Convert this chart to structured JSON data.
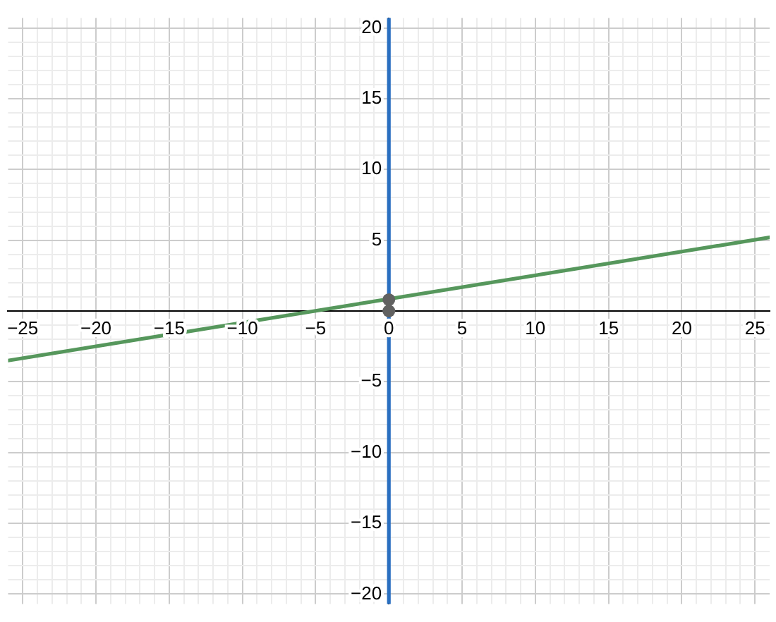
{
  "chart_data": {
    "type": "line",
    "xlim": [
      -26,
      26
    ],
    "ylim": [
      -20.7,
      20.7
    ],
    "xticks": [
      {
        "value": -25,
        "label": "−25"
      },
      {
        "value": -24,
        "label": null
      },
      {
        "value": -23,
        "label": null
      },
      {
        "value": -22,
        "label": null
      },
      {
        "value": -21,
        "label": null
      },
      {
        "value": -20,
        "label": "−20"
      },
      {
        "value": -19,
        "label": null
      },
      {
        "value": -18,
        "label": null
      },
      {
        "value": -17,
        "label": null
      },
      {
        "value": -16,
        "label": null
      },
      {
        "value": -15,
        "label": "−15"
      },
      {
        "value": -14,
        "label": null
      },
      {
        "value": -13,
        "label": null
      },
      {
        "value": -12,
        "label": null
      },
      {
        "value": -11,
        "label": null
      },
      {
        "value": -10,
        "label": "−10"
      },
      {
        "value": -9,
        "label": null
      },
      {
        "value": -8,
        "label": null
      },
      {
        "value": -7,
        "label": null
      },
      {
        "value": -6,
        "label": null
      },
      {
        "value": -5,
        "label": "−5"
      },
      {
        "value": -4,
        "label": null
      },
      {
        "value": -3,
        "label": null
      },
      {
        "value": -2,
        "label": null
      },
      {
        "value": -1,
        "label": null
      },
      0,
      {
        "value": 1,
        "label": null
      },
      {
        "value": 2,
        "label": null
      },
      {
        "value": 3,
        "label": null
      },
      {
        "value": 4,
        "label": null
      },
      5,
      {
        "value": 6,
        "label": null
      },
      {
        "value": 7,
        "label": null
      },
      {
        "value": 8,
        "label": null
      },
      {
        "value": 9,
        "label": null
      },
      10,
      {
        "value": 11,
        "label": null
      },
      {
        "value": 12,
        "label": null
      },
      {
        "value": 13,
        "label": null
      },
      {
        "value": 14,
        "label": null
      },
      15,
      {
        "value": 16,
        "label": null
      },
      {
        "value": 17,
        "label": null
      },
      {
        "value": 18,
        "label": null
      },
      {
        "value": 19,
        "label": null
      },
      20,
      {
        "value": 21,
        "label": null
      },
      {
        "value": 22,
        "label": null
      },
      {
        "value": 23,
        "label": null
      },
      {
        "value": 24,
        "label": null
      },
      25
    ],
    "yticks": [
      {
        "value": -20,
        "label": "−20"
      },
      {
        "value": -19,
        "label": null
      },
      {
        "value": -18,
        "label": null
      },
      {
        "value": -17,
        "label": null
      },
      {
        "value": -16,
        "label": null
      },
      {
        "value": -15,
        "label": "−15"
      },
      {
        "value": -14,
        "label": null
      },
      {
        "value": -13,
        "label": null
      },
      {
        "value": -12,
        "label": null
      },
      {
        "value": -11,
        "label": null
      },
      {
        "value": -10,
        "label": "−10"
      },
      {
        "value": -9,
        "label": null
      },
      {
        "value": -8,
        "label": null
      },
      {
        "value": -7,
        "label": null
      },
      {
        "value": -6,
        "label": null
      },
      {
        "value": -5,
        "label": "−5"
      },
      {
        "value": -4,
        "label": null
      },
      {
        "value": -3,
        "label": null
      },
      {
        "value": -2,
        "label": null
      },
      {
        "value": -1,
        "label": null
      },
      {
        "value": 0,
        "label": null
      },
      {
        "value": 1,
        "label": null
      },
      {
        "value": 2,
        "label": null
      },
      {
        "value": 3,
        "label": null
      },
      {
        "value": 4,
        "label": null
      },
      5,
      {
        "value": 6,
        "label": null
      },
      {
        "value": 7,
        "label": null
      },
      {
        "value": 8,
        "label": null
      },
      {
        "value": 9,
        "label": null
      },
      10,
      {
        "value": 11,
        "label": null
      },
      {
        "value": 12,
        "label": null
      },
      {
        "value": 13,
        "label": null
      },
      {
        "value": 14,
        "label": null
      },
      15,
      {
        "value": 16,
        "label": null
      },
      {
        "value": 17,
        "label": null
      },
      {
        "value": 18,
        "label": null
      },
      {
        "value": 19,
        "label": null
      },
      20
    ],
    "grid": true,
    "series": [
      {
        "color": "#56975c",
        "x": [
          -26,
          26
        ],
        "values": [
          -3.5,
          5.2
        ]
      },
      {
        "color": "#2a6fc0",
        "x": [
          0,
          0
        ],
        "values": [
          -20.7,
          20.7
        ]
      },
      {
        "type": "scatter",
        "color": "#616161",
        "marker": "circle",
        "x": [
          0,
          0
        ],
        "values": [
          0.8,
          0
        ]
      }
    ]
  }
}
